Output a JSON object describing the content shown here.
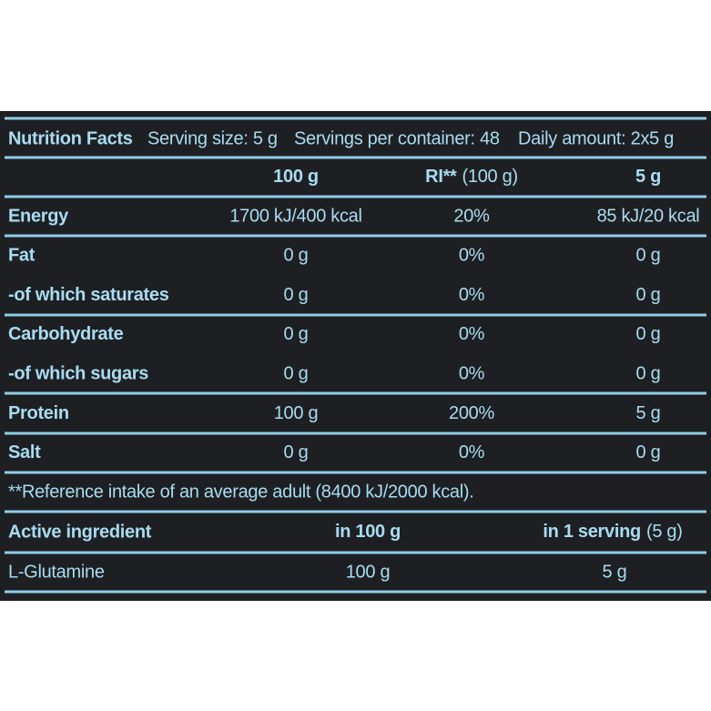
{
  "header": {
    "title": "Nutrition Facts",
    "serving_size": "Serving size: 5 g",
    "servings_per_container": "Servings per container: 48",
    "daily_amount": "Daily amount: 2x5 g"
  },
  "table": {
    "columns": [
      {
        "bold": "100 g"
      },
      {
        "bold": "RI**",
        "normal": "(100 g)"
      },
      {
        "bold": "5 g"
      }
    ],
    "rows": [
      [
        "Energy",
        "1700 kJ/400 kcal",
        "20%",
        "85 kJ/20 kcal"
      ],
      [
        "Fat",
        "0 g",
        "0%",
        "0 g"
      ],
      [
        "-of which saturates",
        "0 g",
        "0%",
        "0 g"
      ],
      [
        "Carbohydrate",
        "0 g",
        "0%",
        "0 g"
      ],
      [
        "-of which sugars",
        "0 g",
        "0%",
        "0 g"
      ],
      [
        "Protein",
        "100 g",
        "200%",
        "5 g"
      ],
      [
        "Salt",
        "0 g",
        "0%",
        "0 g"
      ]
    ]
  },
  "footnote": "**Reference intake of an average adult (8400 kJ/2000 kcal).",
  "active": {
    "header": "Active ingredient",
    "columns": [
      {
        "bold": "in 100 g"
      },
      {
        "bold": "in 1 serving",
        "normal": "(5 g)"
      }
    ],
    "rows": [
      [
        "L-Glutamine",
        "100 g",
        "5 g"
      ]
    ]
  }
}
